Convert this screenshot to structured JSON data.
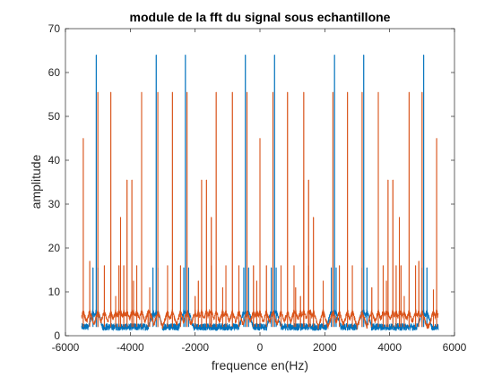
{
  "figure": {
    "background": "#ffffff",
    "axes_color": "#262626"
  },
  "chart_data": {
    "type": "line",
    "title": "module de la fft du signal sous echantillone",
    "xlabel": "frequence en(Hz)",
    "ylabel": "amplitude",
    "xlim": [
      -6000,
      6000
    ],
    "ylim": [
      0,
      70
    ],
    "xticks": [
      -6000,
      -4000,
      -2000,
      0,
      2000,
      4000,
      6000
    ],
    "yticks": [
      0,
      10,
      20,
      30,
      40,
      50,
      60,
      70
    ],
    "xtick_labels": [
      "-6000",
      "-4000",
      "-2000",
      "0",
      "2000",
      "4000",
      "6000"
    ],
    "ytick_labels": [
      "0",
      "10",
      "20",
      "30",
      "40",
      "50",
      "60",
      "70"
    ],
    "grid": false,
    "box": true,
    "series": [
      {
        "color": "#0072BD",
        "peaks": [
          {
            "x": -5050,
            "y": 64
          },
          {
            "x": -3200,
            "y": 64
          },
          {
            "x": -2300,
            "y": 64
          },
          {
            "x": -450,
            "y": 64
          },
          {
            "x": 450,
            "y": 64
          },
          {
            "x": 2300,
            "y": 64
          },
          {
            "x": 3200,
            "y": 64
          },
          {
            "x": 5050,
            "y": 64
          },
          {
            "x": -5150,
            "y": 15.5
          },
          {
            "x": -5000,
            "y": 15.5
          },
          {
            "x": -3300,
            "y": 15.5
          },
          {
            "x": -3150,
            "y": 15.5
          },
          {
            "x": -2350,
            "y": 15.5
          },
          {
            "x": -2200,
            "y": 15.5
          },
          {
            "x": -500,
            "y": 15.5
          },
          {
            "x": -350,
            "y": 15.5
          },
          {
            "x": 350,
            "y": 15.5
          },
          {
            "x": 500,
            "y": 15.5
          },
          {
            "x": 2200,
            "y": 15.5
          },
          {
            "x": 2350,
            "y": 15.5
          },
          {
            "x": 3150,
            "y": 15.5
          },
          {
            "x": 3300,
            "y": 15.5
          },
          {
            "x": 5000,
            "y": 15.5
          },
          {
            "x": 5150,
            "y": 15.5
          }
        ]
      },
      {
        "color": "#D95319",
        "peaks": [
          {
            "x": -5450,
            "y": 45
          },
          {
            "x": 0,
            "y": 45
          },
          {
            "x": 5450,
            "y": 45
          },
          {
            "x": -5000,
            "y": 55.5
          },
          {
            "x": -4600,
            "y": 55.5
          },
          {
            "x": -3650,
            "y": 55.5
          },
          {
            "x": -3150,
            "y": 55.5
          },
          {
            "x": -2700,
            "y": 55.5
          },
          {
            "x": -2250,
            "y": 55.5
          },
          {
            "x": -1350,
            "y": 55.5
          },
          {
            "x": -850,
            "y": 55.5
          },
          {
            "x": -400,
            "y": 55.5
          },
          {
            "x": 400,
            "y": 55.5
          },
          {
            "x": 850,
            "y": 55.5
          },
          {
            "x": 1350,
            "y": 55.5
          },
          {
            "x": 2250,
            "y": 55.5
          },
          {
            "x": 2700,
            "y": 55.5
          },
          {
            "x": 3150,
            "y": 55.5
          },
          {
            "x": 3650,
            "y": 55.5
          },
          {
            "x": 4600,
            "y": 55.5
          },
          {
            "x": 5000,
            "y": 55.5
          },
          {
            "x": -4100,
            "y": 35.5
          },
          {
            "x": -3950,
            "y": 35.5
          },
          {
            "x": -1800,
            "y": 35.5
          },
          {
            "x": -1650,
            "y": 35.5
          },
          {
            "x": 1350,
            "y": 35.5
          },
          {
            "x": 1500,
            "y": 35.5
          },
          {
            "x": 3950,
            "y": 35.5
          },
          {
            "x": 4100,
            "y": 35.5
          },
          {
            "x": -4300,
            "y": 27
          },
          {
            "x": -1500,
            "y": 27
          },
          {
            "x": 1650,
            "y": 27
          },
          {
            "x": 4300,
            "y": 27
          },
          {
            "x": -5250,
            "y": 17
          },
          {
            "x": 4900,
            "y": 17
          },
          {
            "x": -4800,
            "y": 16
          },
          {
            "x": -4350,
            "y": 16
          },
          {
            "x": -4200,
            "y": 16
          },
          {
            "x": -3800,
            "y": 16
          },
          {
            "x": -2850,
            "y": 16
          },
          {
            "x": -2450,
            "y": 16
          },
          {
            "x": -1500,
            "y": 16
          },
          {
            "x": -1050,
            "y": 16
          },
          {
            "x": -650,
            "y": 16
          },
          {
            "x": -200,
            "y": 16
          },
          {
            "x": 200,
            "y": 16
          },
          {
            "x": 650,
            "y": 16
          },
          {
            "x": 1050,
            "y": 16
          },
          {
            "x": 1500,
            "y": 16
          },
          {
            "x": 2450,
            "y": 16
          },
          {
            "x": 2850,
            "y": 16
          },
          {
            "x": 3800,
            "y": 16
          },
          {
            "x": 4200,
            "y": 16
          },
          {
            "x": 4350,
            "y": 16
          },
          {
            "x": 4800,
            "y": 16
          },
          {
            "x": -3900,
            "y": 12.5
          },
          {
            "x": -3400,
            "y": 11
          },
          {
            "x": -1900,
            "y": 12.5
          },
          {
            "x": -1150,
            "y": 11
          },
          {
            "x": -100,
            "y": 12.5
          },
          {
            "x": 1100,
            "y": 11
          },
          {
            "x": 1950,
            "y": 12.5
          },
          {
            "x": 3450,
            "y": 11
          },
          {
            "x": 3900,
            "y": 12.5
          },
          {
            "x": 5350,
            "y": 10.5
          },
          {
            "x": -4450,
            "y": 9
          },
          {
            "x": -2000,
            "y": 9
          },
          {
            "x": 1250,
            "y": 9
          },
          {
            "x": 4450,
            "y": 9
          },
          {
            "x": -3450,
            "y": 5.5
          },
          {
            "x": -1550,
            "y": 5.5
          },
          {
            "x": 1550,
            "y": 5.5
          },
          {
            "x": 3450,
            "y": 5.5
          }
        ]
      }
    ]
  }
}
